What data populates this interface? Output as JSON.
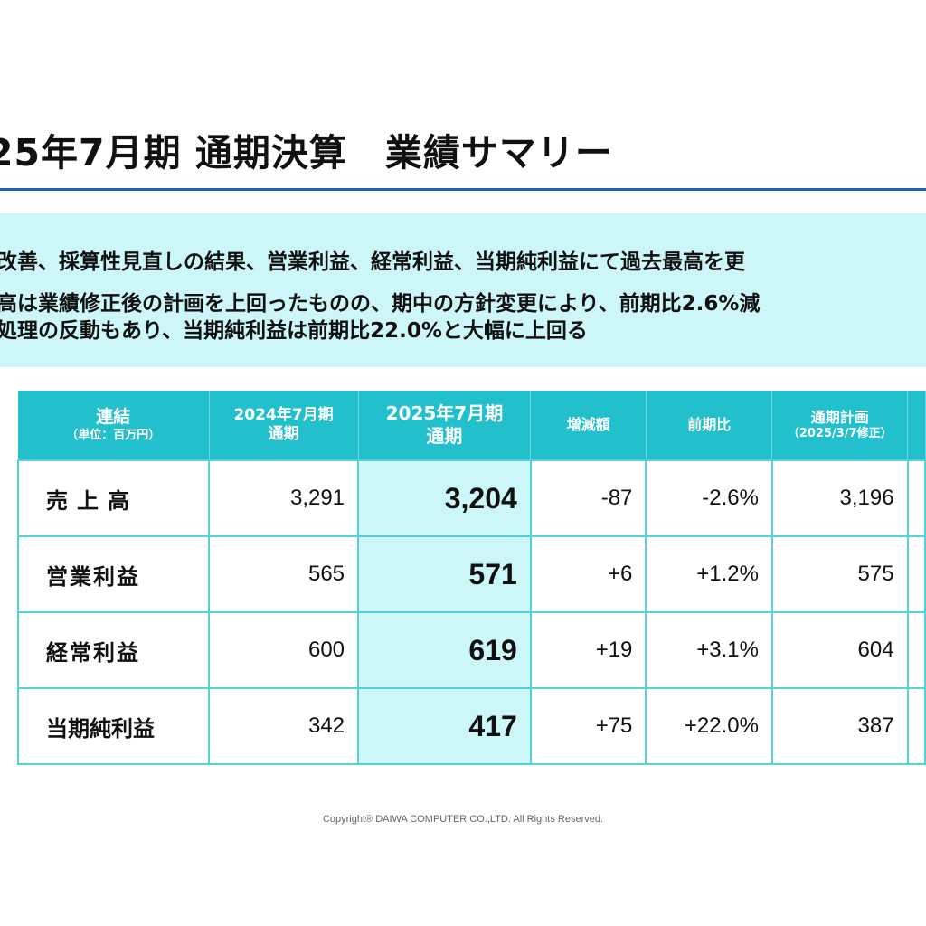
{
  "title": "25年7月期 通期決算　業績サマリー",
  "summary": {
    "lines": [
      "改善、採算性見直しの結果、営業利益、経常利益、当期純利益にて過去最高を更",
      "高は業績修正後の計画を上回ったものの、期中の方針変更により、前期比2.6%減",
      "処理の反動もあり、当期純利益は前期比22.0%と大幅に上回る"
    ]
  },
  "table": {
    "headers": {
      "label_main": "連結",
      "label_sub": "（単位：百万円）",
      "prev_year": "2024年7月期",
      "prev_period": "通期",
      "curr_year": "2025年7月期",
      "curr_period": "通期",
      "change": "増減額",
      "ratio": "前期比",
      "plan_main": "通期計画",
      "plan_sub": "（2025/3/7修正）"
    },
    "rows": [
      {
        "label": "売上高",
        "prev": "3,291",
        "curr": "3,204",
        "change": "-87",
        "ratio": "-2.6%",
        "plan": "3,196"
      },
      {
        "label": "営業利益",
        "prev": "565",
        "curr": "571",
        "change": "+6",
        "ratio": "+1.2%",
        "plan": "575"
      },
      {
        "label": "経常利益",
        "prev": "600",
        "curr": "619",
        "change": "+19",
        "ratio": "+3.1%",
        "plan": "604"
      },
      {
        "label": "当期純利益",
        "prev": "342",
        "curr": "417",
        "change": "+75",
        "ratio": "+22.0%",
        "plan": "387"
      }
    ]
  },
  "footer": "Copyright® DAIWA COMPUTER CO.,LTD. All Rights Reserved.",
  "colors": {
    "header_bg": "#22c0cc",
    "highlight_bg": "#ccf6f8",
    "title_rule": "#1f5fbf"
  }
}
